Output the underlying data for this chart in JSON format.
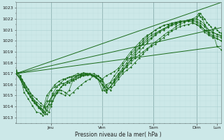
{
  "xlabel": "Pression niveau de la mer( hPa )",
  "ylim": [
    1013,
    1023
  ],
  "yticks": [
    1013,
    1014,
    1015,
    1016,
    1017,
    1018,
    1019,
    1020,
    1021,
    1022,
    1023
  ],
  "xlim": [
    0,
    100
  ],
  "xtick_positions": [
    17,
    42,
    67,
    88,
    98
  ],
  "xtick_labels": [
    "Jeu",
    "Ven",
    "Sam",
    "Dim",
    "Lun"
  ],
  "vlines": [
    17,
    42,
    67,
    88
  ],
  "bg_color": "#cce8e8",
  "line_color": "#1a6b1a",
  "grid_major_color": "#aacfcf",
  "grid_minor_color": "#bddada",
  "trend_lines": [
    [
      0,
      1017.0,
      100,
      1019.5
    ],
    [
      0,
      1017.0,
      100,
      1021.2
    ],
    [
      0,
      1017.0,
      100,
      1023.5
    ]
  ],
  "series": [
    [
      [
        0,
        1017.3
      ],
      [
        1,
        1017.1
      ],
      [
        2,
        1016.8
      ],
      [
        4,
        1015.3
      ],
      [
        6,
        1014.7
      ],
      [
        8,
        1014.1
      ],
      [
        10,
        1013.5
      ],
      [
        12,
        1013.4
      ],
      [
        13,
        1013.2
      ],
      [
        15,
        1014.0
      ],
      [
        17,
        1014.5
      ],
      [
        18,
        1015.0
      ],
      [
        20,
        1015.3
      ],
      [
        22,
        1015.2
      ],
      [
        24,
        1015.0
      ],
      [
        26,
        1015.5
      ],
      [
        28,
        1016.5
      ],
      [
        30,
        1016.8
      ],
      [
        32,
        1016.9
      ],
      [
        34,
        1017.0
      ],
      [
        36,
        1017.0
      ],
      [
        38,
        1016.8
      ],
      [
        40,
        1016.5
      ],
      [
        42,
        1015.5
      ],
      [
        44,
        1016.0
      ],
      [
        46,
        1016.2
      ],
      [
        48,
        1016.5
      ],
      [
        50,
        1017.0
      ],
      [
        52,
        1017.3
      ],
      [
        54,
        1017.6
      ],
      [
        56,
        1018.0
      ],
      [
        58,
        1018.4
      ],
      [
        60,
        1018.7
      ],
      [
        62,
        1019.0
      ],
      [
        64,
        1019.3
      ],
      [
        66,
        1019.6
      ],
      [
        68,
        1019.9
      ],
      [
        70,
        1020.2
      ],
      [
        72,
        1020.5
      ],
      [
        74,
        1020.8
      ],
      [
        76,
        1021.0
      ],
      [
        78,
        1021.3
      ],
      [
        80,
        1021.5
      ],
      [
        82,
        1021.7
      ],
      [
        84,
        1021.8
      ],
      [
        86,
        1021.9
      ],
      [
        88,
        1022.0
      ],
      [
        89,
        1022.3
      ],
      [
        90,
        1022.5
      ],
      [
        91,
        1022.2
      ],
      [
        92,
        1022.0
      ],
      [
        93,
        1021.7
      ],
      [
        94,
        1021.5
      ],
      [
        95,
        1021.3
      ],
      [
        96,
        1021.0
      ],
      [
        97,
        1021.2
      ],
      [
        98,
        1021.0
      ],
      [
        99,
        1020.8
      ],
      [
        100,
        1020.7
      ]
    ],
    [
      [
        0,
        1017.0
      ],
      [
        2,
        1016.7
      ],
      [
        4,
        1016.2
      ],
      [
        6,
        1015.6
      ],
      [
        8,
        1015.0
      ],
      [
        10,
        1014.7
      ],
      [
        12,
        1014.3
      ],
      [
        14,
        1014.0
      ],
      [
        16,
        1014.5
      ],
      [
        18,
        1015.0
      ],
      [
        20,
        1015.5
      ],
      [
        22,
        1015.5
      ],
      [
        24,
        1015.3
      ],
      [
        26,
        1015.0
      ],
      [
        28,
        1015.3
      ],
      [
        30,
        1015.7
      ],
      [
        32,
        1016.0
      ],
      [
        34,
        1016.3
      ],
      [
        36,
        1016.5
      ],
      [
        38,
        1016.8
      ],
      [
        40,
        1016.8
      ],
      [
        42,
        1016.5
      ],
      [
        44,
        1015.8
      ],
      [
        46,
        1015.5
      ],
      [
        48,
        1016.0
      ],
      [
        50,
        1016.5
      ],
      [
        52,
        1017.0
      ],
      [
        54,
        1017.3
      ],
      [
        56,
        1017.6
      ],
      [
        58,
        1018.0
      ],
      [
        60,
        1018.4
      ],
      [
        62,
        1018.8
      ],
      [
        64,
        1019.2
      ],
      [
        66,
        1019.5
      ],
      [
        68,
        1019.7
      ],
      [
        70,
        1020.0
      ],
      [
        72,
        1020.3
      ],
      [
        74,
        1020.6
      ],
      [
        76,
        1020.9
      ],
      [
        78,
        1021.1
      ],
      [
        80,
        1021.3
      ],
      [
        82,
        1021.4
      ],
      [
        84,
        1021.5
      ],
      [
        86,
        1021.6
      ],
      [
        88,
        1021.5
      ],
      [
        90,
        1021.3
      ],
      [
        92,
        1021.0
      ],
      [
        94,
        1020.8
      ],
      [
        96,
        1020.7
      ],
      [
        98,
        1020.6
      ],
      [
        100,
        1020.5
      ]
    ],
    [
      [
        0,
        1017.1
      ],
      [
        2,
        1016.5
      ],
      [
        4,
        1015.8
      ],
      [
        6,
        1015.2
      ],
      [
        8,
        1014.6
      ],
      [
        10,
        1014.2
      ],
      [
        12,
        1013.8
      ],
      [
        14,
        1013.5
      ],
      [
        15,
        1013.3
      ],
      [
        16,
        1013.5
      ],
      [
        17,
        1014.0
      ],
      [
        18,
        1014.5
      ],
      [
        20,
        1015.2
      ],
      [
        22,
        1015.8
      ],
      [
        24,
        1016.0
      ],
      [
        26,
        1016.2
      ],
      [
        28,
        1016.4
      ],
      [
        30,
        1016.6
      ],
      [
        32,
        1016.8
      ],
      [
        34,
        1016.9
      ],
      [
        36,
        1017.0
      ],
      [
        38,
        1016.8
      ],
      [
        40,
        1016.5
      ],
      [
        42,
        1016.0
      ],
      [
        44,
        1015.5
      ],
      [
        46,
        1015.8
      ],
      [
        48,
        1016.2
      ],
      [
        50,
        1016.7
      ],
      [
        52,
        1017.2
      ],
      [
        54,
        1017.7
      ],
      [
        56,
        1018.2
      ],
      [
        58,
        1018.6
      ],
      [
        60,
        1019.0
      ],
      [
        62,
        1019.4
      ],
      [
        64,
        1019.8
      ],
      [
        66,
        1020.2
      ],
      [
        68,
        1020.5
      ],
      [
        70,
        1020.8
      ],
      [
        72,
        1021.0
      ],
      [
        74,
        1021.2
      ],
      [
        76,
        1021.4
      ],
      [
        78,
        1021.5
      ],
      [
        80,
        1021.7
      ],
      [
        82,
        1021.8
      ],
      [
        84,
        1021.9
      ],
      [
        86,
        1022.0
      ],
      [
        88,
        1022.2
      ],
      [
        89,
        1022.5
      ],
      [
        90,
        1022.2
      ],
      [
        91,
        1022.0
      ],
      [
        92,
        1021.5
      ],
      [
        93,
        1021.0
      ],
      [
        94,
        1020.7
      ],
      [
        96,
        1020.5
      ],
      [
        98,
        1020.4
      ],
      [
        100,
        1020.3
      ]
    ],
    [
      [
        0,
        1017.2
      ],
      [
        2,
        1016.8
      ],
      [
        4,
        1016.0
      ],
      [
        6,
        1015.3
      ],
      [
        8,
        1014.8
      ],
      [
        10,
        1014.4
      ],
      [
        12,
        1014.1
      ],
      [
        14,
        1013.9
      ],
      [
        15,
        1013.6
      ],
      [
        17,
        1014.2
      ],
      [
        19,
        1015.0
      ],
      [
        21,
        1015.5
      ],
      [
        23,
        1016.0
      ],
      [
        25,
        1016.3
      ],
      [
        27,
        1016.5
      ],
      [
        29,
        1016.7
      ],
      [
        31,
        1016.9
      ],
      [
        33,
        1017.1
      ],
      [
        35,
        1017.0
      ],
      [
        37,
        1016.9
      ],
      [
        39,
        1016.7
      ],
      [
        41,
        1016.4
      ],
      [
        42,
        1016.0
      ],
      [
        43,
        1015.5
      ],
      [
        44,
        1015.3
      ],
      [
        46,
        1015.8
      ],
      [
        48,
        1016.4
      ],
      [
        50,
        1017.0
      ],
      [
        52,
        1017.5
      ],
      [
        54,
        1018.0
      ],
      [
        56,
        1018.5
      ],
      [
        58,
        1019.0
      ],
      [
        60,
        1019.4
      ],
      [
        62,
        1019.8
      ],
      [
        64,
        1020.2
      ],
      [
        66,
        1020.5
      ],
      [
        68,
        1020.7
      ],
      [
        70,
        1020.9
      ],
      [
        72,
        1021.1
      ],
      [
        74,
        1021.3
      ],
      [
        76,
        1021.5
      ],
      [
        78,
        1021.6
      ],
      [
        80,
        1021.7
      ],
      [
        82,
        1021.8
      ],
      [
        84,
        1021.9
      ],
      [
        86,
        1022.0
      ],
      [
        88,
        1022.0
      ],
      [
        90,
        1021.8
      ],
      [
        92,
        1021.5
      ],
      [
        94,
        1021.0
      ],
      [
        96,
        1020.8
      ],
      [
        98,
        1019.5
      ],
      [
        100,
        1019.2
      ]
    ],
    [
      [
        0,
        1017.0
      ],
      [
        2,
        1016.5
      ],
      [
        4,
        1015.8
      ],
      [
        6,
        1015.2
      ],
      [
        8,
        1014.6
      ],
      [
        10,
        1014.2
      ],
      [
        12,
        1013.9
      ],
      [
        13,
        1013.7
      ],
      [
        15,
        1014.5
      ],
      [
        17,
        1015.5
      ],
      [
        19,
        1015.8
      ],
      [
        21,
        1016.0
      ],
      [
        23,
        1016.1
      ],
      [
        25,
        1016.2
      ],
      [
        27,
        1016.4
      ],
      [
        29,
        1016.5
      ],
      [
        31,
        1016.7
      ],
      [
        33,
        1016.8
      ],
      [
        35,
        1016.9
      ],
      [
        37,
        1016.9
      ],
      [
        39,
        1016.8
      ],
      [
        41,
        1016.6
      ],
      [
        42,
        1016.3
      ],
      [
        44,
        1015.5
      ],
      [
        46,
        1015.8
      ],
      [
        48,
        1016.3
      ],
      [
        50,
        1016.8
      ],
      [
        52,
        1017.3
      ],
      [
        54,
        1017.8
      ],
      [
        56,
        1018.3
      ],
      [
        58,
        1018.8
      ],
      [
        60,
        1019.3
      ],
      [
        62,
        1019.7
      ],
      [
        64,
        1020.0
      ],
      [
        66,
        1020.3
      ],
      [
        68,
        1020.6
      ],
      [
        70,
        1020.9
      ],
      [
        72,
        1021.1
      ],
      [
        74,
        1021.3
      ],
      [
        76,
        1021.5
      ],
      [
        78,
        1021.6
      ],
      [
        80,
        1021.7
      ],
      [
        82,
        1021.8
      ],
      [
        84,
        1021.9
      ],
      [
        86,
        1021.9
      ],
      [
        88,
        1021.8
      ],
      [
        90,
        1021.6
      ],
      [
        92,
        1021.3
      ],
      [
        94,
        1021.0
      ],
      [
        96,
        1020.8
      ],
      [
        98,
        1020.6
      ],
      [
        100,
        1020.4
      ]
    ],
    [
      [
        0,
        1017.1
      ],
      [
        3,
        1016.3
      ],
      [
        5,
        1015.5
      ],
      [
        7,
        1014.9
      ],
      [
        9,
        1014.3
      ],
      [
        11,
        1013.9
      ],
      [
        13,
        1013.5
      ],
      [
        15,
        1015.0
      ],
      [
        17,
        1015.5
      ],
      [
        19,
        1016.0
      ],
      [
        21,
        1016.3
      ],
      [
        23,
        1016.5
      ],
      [
        25,
        1016.6
      ],
      [
        27,
        1016.7
      ],
      [
        29,
        1016.8
      ],
      [
        31,
        1016.9
      ],
      [
        33,
        1016.9
      ],
      [
        35,
        1016.9
      ],
      [
        37,
        1016.8
      ],
      [
        39,
        1016.6
      ],
      [
        41,
        1016.3
      ],
      [
        42,
        1016.5
      ],
      [
        44,
        1016.8
      ],
      [
        46,
        1017.0
      ],
      [
        48,
        1017.2
      ],
      [
        50,
        1017.5
      ],
      [
        52,
        1018.0
      ],
      [
        54,
        1018.5
      ],
      [
        56,
        1019.0
      ],
      [
        58,
        1019.4
      ],
      [
        60,
        1019.8
      ],
      [
        62,
        1020.2
      ],
      [
        64,
        1020.5
      ],
      [
        66,
        1020.7
      ],
      [
        68,
        1021.0
      ],
      [
        70,
        1021.2
      ],
      [
        72,
        1021.4
      ],
      [
        74,
        1021.5
      ],
      [
        76,
        1021.6
      ],
      [
        78,
        1021.7
      ],
      [
        80,
        1021.8
      ],
      [
        82,
        1021.8
      ],
      [
        84,
        1021.8
      ],
      [
        86,
        1021.7
      ],
      [
        88,
        1021.5
      ],
      [
        90,
        1021.2
      ],
      [
        92,
        1020.8
      ],
      [
        94,
        1020.5
      ],
      [
        96,
        1020.3
      ],
      [
        98,
        1020.2
      ],
      [
        100,
        1020.0
      ]
    ],
    [
      [
        0,
        1017.0
      ],
      [
        3,
        1016.5
      ],
      [
        5,
        1015.8
      ],
      [
        7,
        1015.2
      ],
      [
        9,
        1014.5
      ],
      [
        11,
        1014.0
      ],
      [
        13,
        1013.5
      ],
      [
        14,
        1013.3
      ],
      [
        16,
        1014.2
      ],
      [
        18,
        1015.2
      ],
      [
        20,
        1015.8
      ],
      [
        22,
        1016.2
      ],
      [
        24,
        1016.5
      ],
      [
        26,
        1016.7
      ],
      [
        28,
        1016.8
      ],
      [
        30,
        1017.0
      ],
      [
        32,
        1017.0
      ],
      [
        34,
        1017.0
      ],
      [
        36,
        1017.0
      ],
      [
        38,
        1017.0
      ],
      [
        40,
        1016.8
      ],
      [
        42,
        1016.5
      ],
      [
        43,
        1015.8
      ],
      [
        44,
        1015.5
      ],
      [
        46,
        1016.2
      ],
      [
        48,
        1016.8
      ],
      [
        50,
        1017.3
      ],
      [
        52,
        1017.8
      ],
      [
        54,
        1018.3
      ],
      [
        56,
        1018.8
      ],
      [
        58,
        1019.2
      ],
      [
        60,
        1019.6
      ],
      [
        62,
        1020.0
      ],
      [
        64,
        1020.4
      ],
      [
        66,
        1020.7
      ],
      [
        68,
        1021.0
      ],
      [
        70,
        1021.2
      ],
      [
        72,
        1021.4
      ],
      [
        74,
        1021.5
      ],
      [
        76,
        1021.6
      ],
      [
        78,
        1021.7
      ],
      [
        80,
        1021.8
      ],
      [
        82,
        1021.8
      ],
      [
        84,
        1021.8
      ],
      [
        86,
        1021.8
      ],
      [
        88,
        1021.7
      ],
      [
        90,
        1021.4
      ],
      [
        92,
        1021.0
      ],
      [
        94,
        1020.6
      ],
      [
        96,
        1020.4
      ],
      [
        98,
        1020.2
      ],
      [
        100,
        1020.0
      ]
    ]
  ]
}
